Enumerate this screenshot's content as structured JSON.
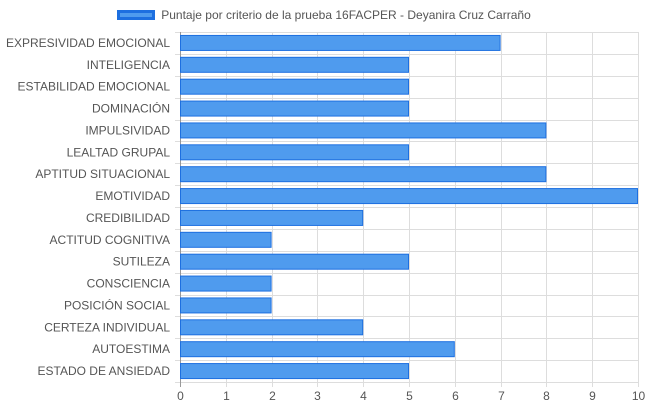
{
  "chart_data": {
    "type": "bar",
    "orientation": "horizontal",
    "categories": [
      "EXPRESIVIDAD EMOCIONAL",
      "INTELIGENCIA",
      "ESTABILIDAD EMOCIONAL",
      "DOMINACIÓN",
      "IMPULSIVIDAD",
      "LEALTAD GRUPAL",
      "APTITUD SITUACIONAL",
      "EMOTIVIDAD",
      "CREDIBILIDAD",
      "ACTITUD COGNITIVA",
      "SUTILEZA",
      "CONSCIENCIA",
      "POSICIÓN SOCIAL",
      "CERTEZA INDIVIDUAL",
      "AUTOESTIMA",
      "ESTADO DE ANSIEDAD"
    ],
    "series": [
      {
        "name": "Puntaje por criterio de la prueba 16FACPER - Deyanira Cruz Carraño",
        "values": [
          7,
          5,
          5,
          5,
          8,
          5,
          8,
          10,
          4,
          2,
          5,
          2,
          2,
          4,
          6,
          5
        ]
      }
    ],
    "xlim": [
      0,
      10
    ],
    "x_ticks": [
      "0",
      "1",
      "2",
      "3",
      "4",
      "5",
      "6",
      "7",
      "8",
      "9",
      "10"
    ],
    "grid": true,
    "legend_position": "top",
    "colors": {
      "bar_fill": "#4f9bee",
      "bar_stroke": "#1d6fe0",
      "grid": "#dddddd",
      "axis": "#999999",
      "text": "#555555"
    }
  }
}
